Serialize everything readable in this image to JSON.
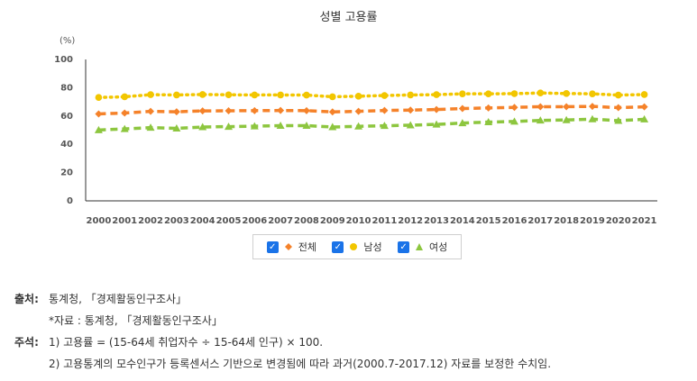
{
  "chart_data": {
    "type": "line",
    "title": "성별 고용률",
    "unit": "(%)",
    "categories": [
      "2000",
      "2001",
      "2002",
      "2003",
      "2004",
      "2005",
      "2006",
      "2007",
      "2008",
      "2009",
      "2010",
      "2011",
      "2012",
      "2013",
      "2014",
      "2015",
      "2016",
      "2017",
      "2018",
      "2019",
      "2020",
      "2021"
    ],
    "ylim": [
      0,
      100
    ],
    "yticks": [
      0,
      20,
      40,
      60,
      80,
      100
    ],
    "legend_position": "bottom",
    "grid": false,
    "series": [
      {
        "name": "전체",
        "color": "#f5822a",
        "marker": "diamond",
        "dash": "long",
        "values": [
          61.5,
          62.1,
          63.3,
          63.0,
          63.6,
          63.7,
          63.8,
          63.9,
          63.8,
          62.9,
          63.3,
          63.9,
          64.2,
          64.6,
          65.3,
          65.7,
          66.1,
          66.6,
          66.6,
          66.8,
          65.9,
          66.5
        ]
      },
      {
        "name": "남성",
        "color": "#f2c600",
        "marker": "circle",
        "dash": "dot",
        "values": [
          73.1,
          73.6,
          75.1,
          74.9,
          75.2,
          75.0,
          74.9,
          74.9,
          74.8,
          73.6,
          74.0,
          74.5,
          74.9,
          75.1,
          75.7,
          75.7,
          75.8,
          76.3,
          75.9,
          75.7,
          74.8,
          75.2
        ]
      },
      {
        "name": "여성",
        "color": "#8dc63f",
        "marker": "triangle",
        "dash": "long",
        "values": [
          50.1,
          50.9,
          51.8,
          51.3,
          52.2,
          52.5,
          52.8,
          53.2,
          53.2,
          52.2,
          52.7,
          53.1,
          53.5,
          54.1,
          55.0,
          55.7,
          56.1,
          56.9,
          57.2,
          57.8,
          56.7,
          57.7
        ]
      }
    ]
  },
  "notes": {
    "source_head": "출처:",
    "source_text": "통계청, 「경제활동인구조사」",
    "data_text": "*자료 : 통계청, 「경제활동인구조사」",
    "comment_head": "주석:",
    "comment_1": "1) 고용률 = (15-64세 취업자수 ÷ 15-64세 인구) × 100.",
    "comment_2": "2) 고용통계의 모수인구가 등록센서스 기반으로 변경됨에 따라 과거(2000.7-2017.12) 자료를 보정한 수치임."
  },
  "legend": {
    "checked_icon": "check-icon"
  }
}
